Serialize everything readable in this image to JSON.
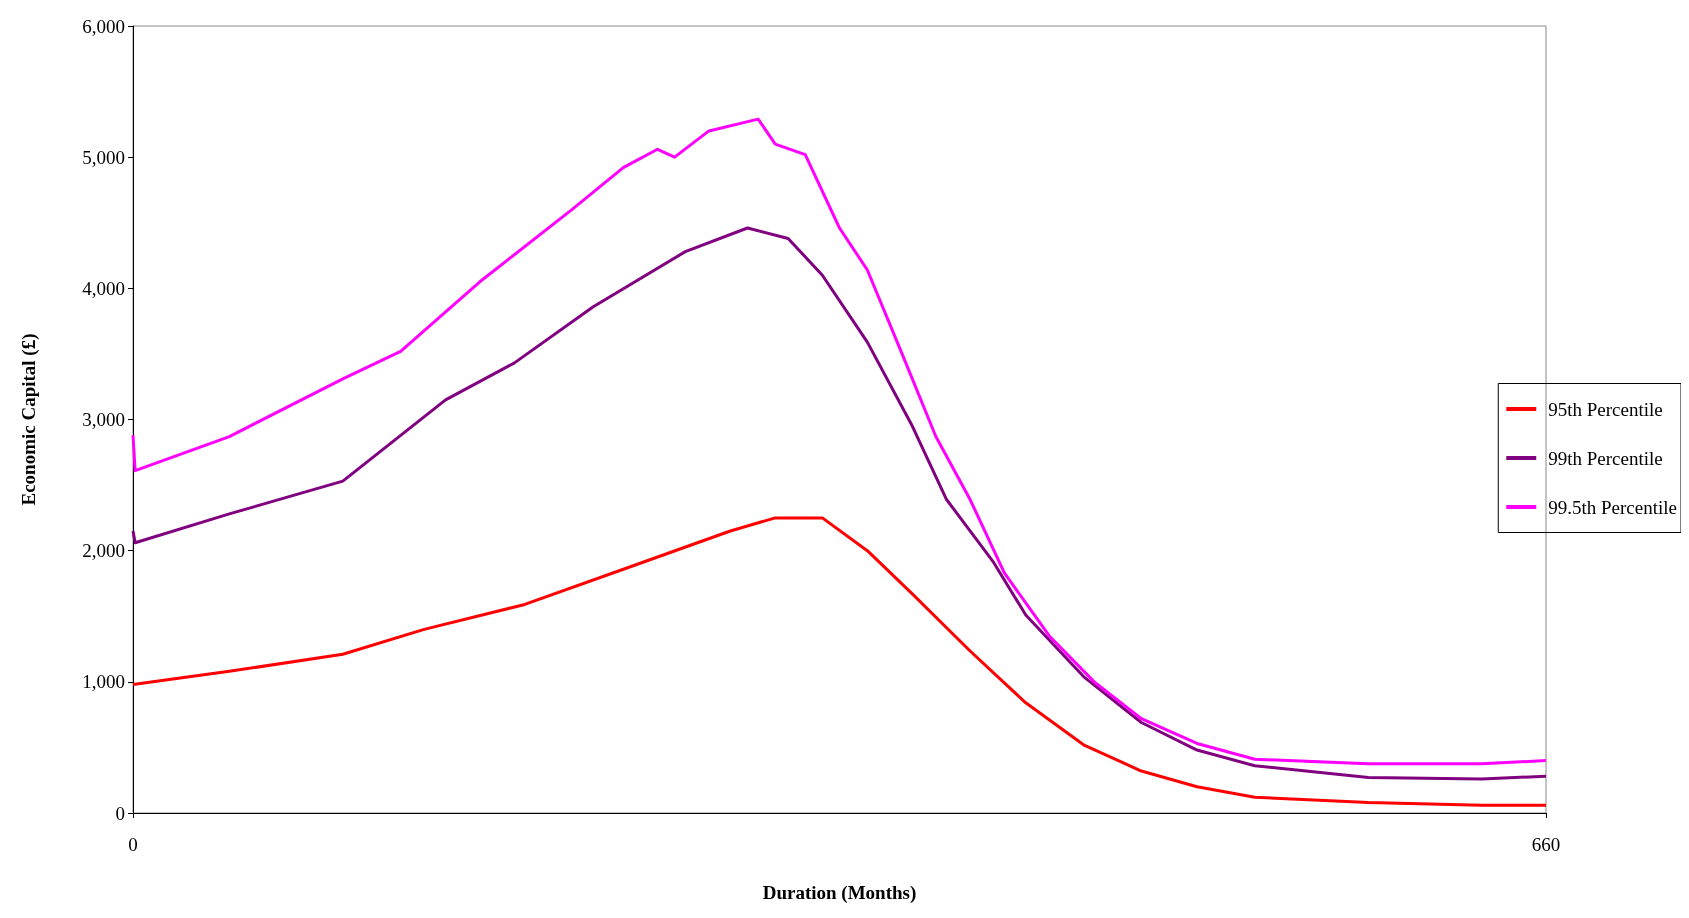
{
  "chart_data": {
    "type": "line",
    "xlabel": "Duration (Months)",
    "ylabel": "Economic Capital (£)",
    "xlim": [
      0,
      660
    ],
    "xticks": [
      0,
      660
    ],
    "ylim": [
      0,
      6000
    ],
    "yticks": [
      0,
      {
        "value": 1000,
        "label": "1,000"
      },
      {
        "value": 2000,
        "label": "2,000"
      },
      {
        "value": 3000,
        "label": "3,000"
      },
      {
        "value": 4000,
        "label": "4,000"
      },
      {
        "value": 5000,
        "label": "5,000"
      },
      {
        "value": 6000,
        "label": "6,000"
      }
    ],
    "grid": false,
    "legend": "right",
    "marker": "none",
    "line_style": "solid",
    "series": [
      {
        "name": "95th Percentile",
        "color": "#ff0000",
        "x": [
          0,
          45,
          98,
          136,
          183,
          231,
          279,
          300,
          322,
          343,
          364,
          391,
          417,
          444,
          471,
          497,
          524,
          577,
          630,
          660
        ],
        "values": [
          980,
          1080,
          1210,
          1400,
          1590,
          1870,
          2150,
          2250,
          2250,
          2000,
          1670,
          1235,
          840,
          520,
          320,
          200,
          120,
          80,
          60,
          60
        ]
      },
      {
        "name": "99th Percentile",
        "color": "#800080",
        "x": [
          0,
          1,
          45,
          98,
          146,
          178,
          215,
          258,
          287,
          306,
          322,
          343,
          364,
          380,
          402,
          417,
          444,
          471,
          497,
          524,
          577,
          630,
          660
        ],
        "values": [
          2150,
          2060,
          2280,
          2530,
          3150,
          3430,
          3860,
          4280,
          4460,
          4380,
          4100,
          3590,
          2950,
          2390,
          1910,
          1510,
          1040,
          690,
          480,
          360,
          270,
          260,
          280
        ]
      },
      {
        "name": "99.5th Percentile",
        "color": "#ff00ff",
        "x": [
          0,
          1,
          45,
          98,
          125,
          162,
          205,
          229,
          245,
          253,
          269,
          292,
          300,
          314,
          330,
          343,
          359,
          375,
          391,
          407,
          428,
          449,
          471,
          497,
          524,
          577,
          630,
          660
        ],
        "values": [
          2880,
          2610,
          2870,
          3310,
          3520,
          4050,
          4600,
          4920,
          5060,
          5000,
          5200,
          5290,
          5100,
          5020,
          4460,
          4140,
          3510,
          2870,
          2390,
          1830,
          1350,
          1000,
          720,
          530,
          410,
          375,
          375,
          400
        ]
      }
    ]
  }
}
